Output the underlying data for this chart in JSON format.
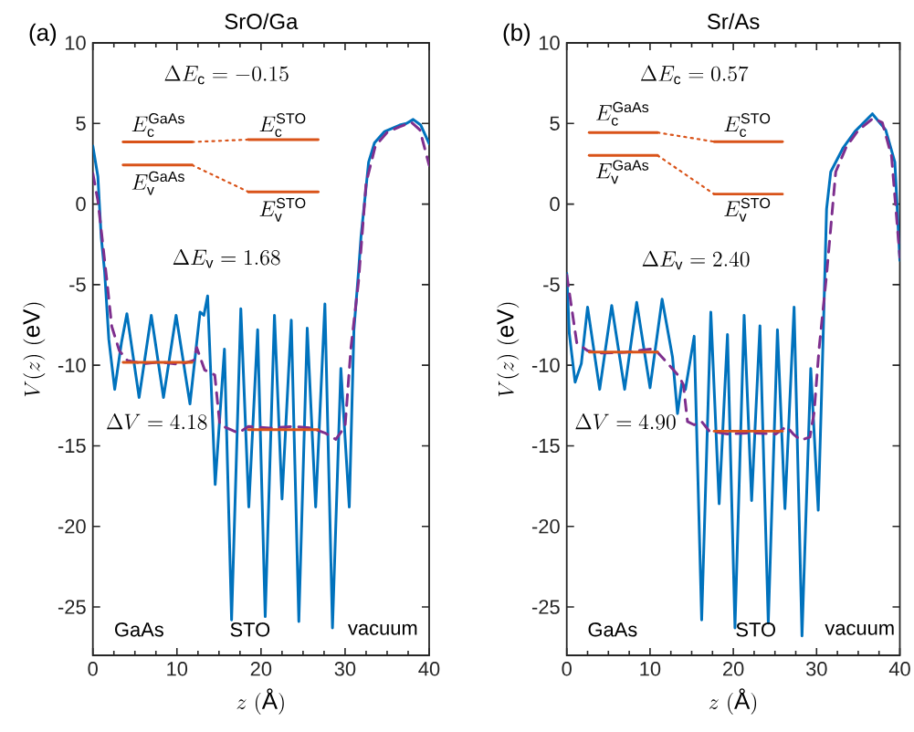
{
  "chart_data": [
    {
      "type": "line",
      "title": "SrO/Ga",
      "xlabel": "z\\ (\\text{\\AA})",
      "ylabel": "V(z)\\ (\\mathrm{eV})",
      "xlim": [
        0,
        40
      ],
      "ylim": [
        -28,
        10
      ],
      "xticks": [
        0,
        10,
        20,
        30,
        40
      ],
      "yticks": [
        -25,
        -20,
        -15,
        -10,
        -5,
        0,
        5,
        10
      ],
      "series": [
        {
          "color": "#0072bd",
          "line_style": "solid",
          "x": [
            0,
            0.6,
            1.0,
            1.4,
            1.9,
            2.6,
            3.4,
            4.05,
            5.5,
            6.95,
            8.4,
            9.9,
            11.55,
            12.75,
            13.2,
            13.65,
            14.55,
            15.65,
            16.5,
            17.6,
            18.55,
            19.6,
            20.5,
            21.6,
            22.5,
            23.6,
            24.5,
            25.5,
            26.5,
            27.6,
            28.5,
            29.5,
            30.5,
            31.05,
            31.6,
            31.9,
            32.8,
            33.5,
            34.7,
            36.5,
            37.3,
            38.1,
            39.0,
            40
          ],
          "values": [
            3.6,
            1.7,
            -2.1,
            -4.2,
            -8.4,
            -11.5,
            -8.6,
            -6.8,
            -12.0,
            -6.9,
            -12.0,
            -6.9,
            -12.4,
            -6.7,
            -6.9,
            -5.7,
            -17.4,
            -9.0,
            -25.8,
            -6.5,
            -18.8,
            -7.8,
            -25.6,
            -6.9,
            -18.3,
            -7.2,
            -25.9,
            -7.7,
            -18.8,
            -6.2,
            -26.3,
            -10.2,
            -18.8,
            -7.8,
            -4.2,
            -2.0,
            2.6,
            3.8,
            4.5,
            4.9,
            5.0,
            5.25,
            4.9,
            3.75
          ]
        },
        {
          "color": "#7e2f8e",
          "line_style": "dashed",
          "x": [
            0,
            0.6,
            1.1,
            1.7,
            2.25,
            3.15,
            4.1,
            6,
            8,
            10.4,
            12.0,
            12.35,
            13.3,
            14.5,
            15.1,
            17.3,
            18.5,
            21,
            24,
            26,
            27.6,
            28.9,
            30.0,
            30.7,
            31.6,
            32.5,
            33.6,
            35.0,
            36.5,
            37.9,
            38.9,
            40
          ],
          "values": [
            1.9,
            0.2,
            -2.1,
            -4.9,
            -7.6,
            -9.1,
            -9.7,
            -9.9,
            -9.8,
            -9.95,
            -9.7,
            -8.9,
            -10.3,
            -10.6,
            -13.7,
            -14.2,
            -13.8,
            -13.9,
            -13.8,
            -13.9,
            -14.2,
            -14.6,
            -13.8,
            -8.9,
            -4.8,
            1.3,
            3.6,
            4.45,
            4.8,
            5.07,
            4.6,
            2.4
          ]
        },
        {
          "color": "#d95319",
          "line_style": "solid",
          "x": [
            3.6,
            11.8
          ],
          "values": [
            3.85,
            3.85
          ]
        },
        {
          "color": "#d95319",
          "line_style": "solid",
          "x": [
            3.6,
            11.8
          ],
          "values": [
            2.42,
            2.42
          ]
        },
        {
          "color": "#d95319",
          "line_style": "solid",
          "x": [
            18.5,
            26.8
          ],
          "values": [
            4.0,
            4.0
          ]
        },
        {
          "color": "#d95319",
          "line_style": "solid",
          "x": [
            18.5,
            26.8
          ],
          "values": [
            0.76,
            0.76
          ]
        },
        {
          "color": "#d95319",
          "line_style": "solid",
          "x": [
            3.6,
            11.8
          ],
          "values": [
            -9.82,
            -9.82
          ]
        },
        {
          "color": "#d95319",
          "line_style": "solid",
          "x": [
            18.5,
            26.8
          ],
          "values": [
            -14.0,
            -14.0
          ]
        },
        {
          "color": "#d95319",
          "line_style": "dotted",
          "x": [
            11.8,
            18.5
          ],
          "values": [
            3.85,
            4.0
          ]
        },
        {
          "color": "#d95319",
          "line_style": "dotted",
          "x": [
            11.8,
            18.5
          ],
          "values": [
            2.42,
            0.76
          ]
        }
      ],
      "annotations": [
        "(a)",
        "GaAs",
        "STO",
        "vacuum",
        "\\Delta E_\\mathrm{c} = -0.15",
        "\\Delta E_\\mathrm{v} = 1.68",
        "\\Delta V = 4.18",
        "E_\\mathrm{c}^\\mathrm{GaAs}",
        "E_\\mathrm{v}^\\mathrm{GaAs}",
        "E_\\mathrm{c}^\\mathrm{STO}",
        "E_\\mathrm{v}^\\mathrm{STO}"
      ]
    },
    {
      "type": "line",
      "title": "Sr/As",
      "xlabel": "z\\ (\\text{\\AA})",
      "ylabel": "V(z)\\ (\\mathrm{eV})",
      "xlim": [
        0,
        40
      ],
      "ylim": [
        -28,
        10
      ],
      "xticks": [
        0,
        10,
        20,
        30,
        40
      ],
      "yticks": [
        -25,
        -20,
        -15,
        -10,
        -5,
        0,
        5,
        10
      ],
      "series": [
        {
          "color": "#0072bd",
          "line_style": "solid",
          "x": [
            0,
            0.3,
            1.0,
            1.75,
            2.5,
            3.95,
            5.4,
            6.95,
            8.4,
            10.0,
            11.45,
            12.7,
            13.3,
            13.8,
            14.25,
            15.3,
            16.2,
            17.3,
            18.3,
            19.3,
            20.2,
            21.3,
            22.2,
            23.2,
            24.2,
            25.3,
            26.2,
            27.3,
            28.25,
            29.3,
            30.2,
            30.6,
            31.0,
            31.2,
            31.7,
            33.2,
            34.6,
            36.7,
            38.3,
            39.4,
            40
          ],
          "values": [
            -4.3,
            -8.0,
            -11.05,
            -9.9,
            -6.4,
            -11.5,
            -6.3,
            -11.5,
            -6.1,
            -11.4,
            -5.9,
            -9.5,
            -13.0,
            -11.15,
            -11.5,
            -8.2,
            -25.8,
            -6.7,
            -18.6,
            -8.1,
            -26.3,
            -6.9,
            -18.4,
            -7.55,
            -26.0,
            -7.8,
            -18.9,
            -6.4,
            -26.8,
            -10.2,
            -19.0,
            -11.8,
            -4.2,
            -0.3,
            2.0,
            3.5,
            4.5,
            5.6,
            4.6,
            2.6,
            -3.5
          ]
        },
        {
          "color": "#7e2f8e",
          "line_style": "dashed",
          "x": [
            0,
            0.66,
            1.2,
            2.5,
            3.95,
            7,
            10.5,
            12.0,
            13.45,
            14.0,
            14.5,
            15.3,
            16.2,
            17.1,
            19.3,
            22.2,
            25.1,
            26.4,
            27.2,
            28.1,
            29.2,
            29.7,
            30.3,
            31.2,
            32.3,
            33.55,
            35.0,
            36.8,
            37.9,
            39.0,
            40
          ],
          "values": [
            -4.4,
            -6.7,
            -8.6,
            -9.1,
            -9.25,
            -9.2,
            -8.97,
            -9.82,
            -10.67,
            -11.2,
            -13.5,
            -13.7,
            -13.5,
            -14.08,
            -14.27,
            -14.2,
            -14.27,
            -13.8,
            -14.27,
            -14.65,
            -14.46,
            -12.95,
            -8.97,
            -4.4,
            2.0,
            3.53,
            4.57,
            5.33,
            5.05,
            2.97,
            -3.3
          ]
        },
        {
          "color": "#d95319",
          "line_style": "solid",
          "x": [
            2.7,
            10.9
          ],
          "values": [
            4.44,
            4.44
          ]
        },
        {
          "color": "#d95319",
          "line_style": "solid",
          "x": [
            2.7,
            10.9
          ],
          "values": [
            3.02,
            3.02
          ]
        },
        {
          "color": "#d95319",
          "line_style": "solid",
          "x": [
            17.7,
            25.9
          ],
          "values": [
            3.87,
            3.87
          ]
        },
        {
          "color": "#d95319",
          "line_style": "solid",
          "x": [
            17.7,
            25.9
          ],
          "values": [
            0.62,
            0.62
          ]
        },
        {
          "color": "#d95319",
          "line_style": "solid",
          "x": [
            2.7,
            10.9
          ],
          "values": [
            -9.19,
            -9.19
          ]
        },
        {
          "color": "#d95319",
          "line_style": "solid",
          "x": [
            17.7,
            25.9
          ],
          "values": [
            -14.09,
            -14.09
          ]
        },
        {
          "color": "#d95319",
          "line_style": "dotted",
          "x": [
            10.9,
            17.7
          ],
          "values": [
            4.44,
            3.87
          ]
        },
        {
          "color": "#d95319",
          "line_style": "dotted",
          "x": [
            10.9,
            17.7
          ],
          "values": [
            3.02,
            0.62
          ]
        }
      ],
      "annotations": [
        "(b)",
        "GaAs",
        "STO",
        "vacuum",
        "\\Delta E_\\mathrm{c} = 0.57",
        "\\Delta E_\\mathrm{v} = 2.40",
        "\\Delta V = 4.90",
        "E_\\mathrm{c}^\\mathrm{GaAs}",
        "E_\\mathrm{v}^\\mathrm{GaAs}",
        "E_\\mathrm{c}^\\mathrm{STO}",
        "E_\\mathrm{v}^\\mathrm{STO}"
      ]
    }
  ]
}
